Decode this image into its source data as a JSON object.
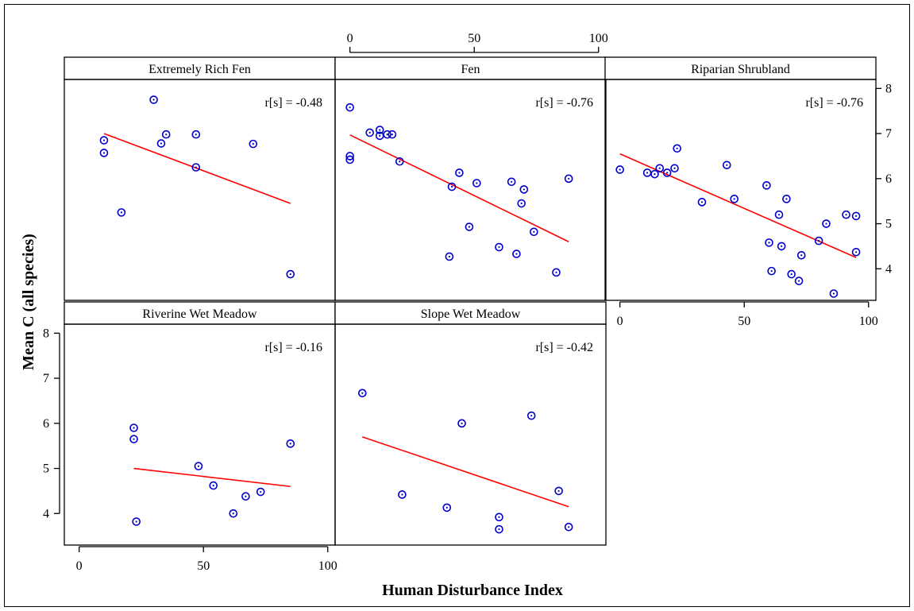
{
  "chart_data": {
    "type": "scatter",
    "layout": "trellis 3 columns x 2 rows, shared axes",
    "xlabel": "Human Disturbance Index",
    "ylabel": "Mean C (all species)",
    "xlim": [
      -5,
      102
    ],
    "ylim": [
      3.3,
      8.2
    ],
    "x_ticks": [
      0,
      50,
      100
    ],
    "y_ticks": [
      4,
      5,
      6,
      7,
      8
    ],
    "x_tick_labels": [
      "0",
      "50",
      "100"
    ],
    "y_tick_labels": [
      "4",
      "5",
      "6",
      "7",
      "8"
    ],
    "marker_color": "#0000cc",
    "fit_color": "#ff0000",
    "panels": [
      {
        "title": "Extremely Rich Fen",
        "correlation": "r[s] = -0.48",
        "fit": {
          "x": [
            10,
            85
          ],
          "y": [
            7.0,
            5.45
          ]
        },
        "points": [
          {
            "x": 10,
            "y": 6.85
          },
          {
            "x": 10,
            "y": 6.57
          },
          {
            "x": 17,
            "y": 5.25
          },
          {
            "x": 30,
            "y": 7.75
          },
          {
            "x": 33,
            "y": 6.78
          },
          {
            "x": 35,
            "y": 6.98
          },
          {
            "x": 47,
            "y": 6.98
          },
          {
            "x": 47,
            "y": 6.25
          },
          {
            "x": 70,
            "y": 6.77
          },
          {
            "x": 85,
            "y": 3.88
          }
        ]
      },
      {
        "title": "Fen",
        "correlation": "r[s] = -0.76",
        "fit": {
          "x": [
            0,
            88
          ],
          "y": [
            6.97,
            4.6
          ]
        },
        "points": [
          {
            "x": 0,
            "y": 7.58
          },
          {
            "x": 0,
            "y": 6.5
          },
          {
            "x": 0,
            "y": 6.42
          },
          {
            "x": 8,
            "y": 7.02
          },
          {
            "x": 12,
            "y": 7.08
          },
          {
            "x": 12,
            "y": 6.95
          },
          {
            "x": 15,
            "y": 6.98
          },
          {
            "x": 17,
            "y": 6.98
          },
          {
            "x": 20,
            "y": 6.38
          },
          {
            "x": 40,
            "y": 4.27
          },
          {
            "x": 41,
            "y": 5.82
          },
          {
            "x": 44,
            "y": 6.13
          },
          {
            "x": 48,
            "y": 4.93
          },
          {
            "x": 51,
            "y": 5.9
          },
          {
            "x": 60,
            "y": 4.48
          },
          {
            "x": 65,
            "y": 5.93
          },
          {
            "x": 67,
            "y": 4.33
          },
          {
            "x": 69,
            "y": 5.45
          },
          {
            "x": 70,
            "y": 5.76
          },
          {
            "x": 74,
            "y": 4.82
          },
          {
            "x": 83,
            "y": 3.92
          },
          {
            "x": 88,
            "y": 6.0
          }
        ]
      },
      {
        "title": "Riparian Shrubland",
        "correlation": "r[s] = -0.76",
        "fit": {
          "x": [
            0,
            95
          ],
          "y": [
            6.55,
            4.25
          ]
        },
        "points": [
          {
            "x": 0,
            "y": 6.2
          },
          {
            "x": 11,
            "y": 6.13
          },
          {
            "x": 14,
            "y": 6.1
          },
          {
            "x": 16,
            "y": 6.23
          },
          {
            "x": 19,
            "y": 6.13
          },
          {
            "x": 22,
            "y": 6.23
          },
          {
            "x": 23,
            "y": 6.67
          },
          {
            "x": 33,
            "y": 5.48
          },
          {
            "x": 43,
            "y": 6.3
          },
          {
            "x": 46,
            "y": 5.55
          },
          {
            "x": 59,
            "y": 5.85
          },
          {
            "x": 60,
            "y": 4.58
          },
          {
            "x": 61,
            "y": 3.95
          },
          {
            "x": 64,
            "y": 5.2
          },
          {
            "x": 65,
            "y": 4.5
          },
          {
            "x": 67,
            "y": 5.55
          },
          {
            "x": 69,
            "y": 3.88
          },
          {
            "x": 72,
            "y": 3.73
          },
          {
            "x": 73,
            "y": 4.3
          },
          {
            "x": 80,
            "y": 4.62
          },
          {
            "x": 83,
            "y": 5.0
          },
          {
            "x": 86,
            "y": 3.45
          },
          {
            "x": 91,
            "y": 5.2
          },
          {
            "x": 95,
            "y": 5.17
          },
          {
            "x": 95,
            "y": 4.37
          }
        ]
      },
      {
        "title": "Riverine Wet Meadow",
        "correlation": "r[s] = -0.16",
        "fit": {
          "x": [
            22,
            85
          ],
          "y": [
            5.0,
            4.6
          ]
        },
        "points": [
          {
            "x": 22,
            "y": 5.9
          },
          {
            "x": 22,
            "y": 5.65
          },
          {
            "x": 23,
            "y": 3.82
          },
          {
            "x": 48,
            "y": 5.05
          },
          {
            "x": 54,
            "y": 4.62
          },
          {
            "x": 62,
            "y": 4.0
          },
          {
            "x": 67,
            "y": 4.38
          },
          {
            "x": 73,
            "y": 4.48
          },
          {
            "x": 85,
            "y": 5.55
          }
        ]
      },
      {
        "title": "Slope Wet Meadow",
        "correlation": "r[s] = -0.42",
        "fit": {
          "x": [
            5,
            88
          ],
          "y": [
            5.7,
            4.15
          ]
        },
        "points": [
          {
            "x": 5,
            "y": 6.67
          },
          {
            "x": 21,
            "y": 4.42
          },
          {
            "x": 39,
            "y": 4.13
          },
          {
            "x": 45,
            "y": 6.0
          },
          {
            "x": 60,
            "y": 3.92
          },
          {
            "x": 60,
            "y": 3.65
          },
          {
            "x": 73,
            "y": 6.17
          },
          {
            "x": 84,
            "y": 4.5
          },
          {
            "x": 88,
            "y": 3.7
          }
        ]
      }
    ]
  }
}
